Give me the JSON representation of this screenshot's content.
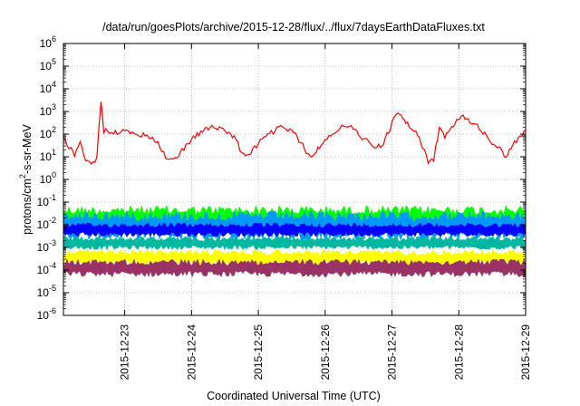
{
  "chart_data": {
    "type": "line",
    "title": "/data/run/goesPlots/archive/2015-12-28/flux/../flux/7daysEarthDataFluxes.txt",
    "xlabel": "Coordinated Universal Time (UTC)",
    "ylabel_parts": {
      "base": "protons/cm",
      "sup": "2",
      "rest": "-s-sr-MeV"
    },
    "yscale": "log",
    "ylim_exp": [
      -6,
      6
    ],
    "ytick_base": "10",
    "ytick_exponents": [
      "-6",
      "-5",
      "-4",
      "-3",
      "-2",
      "-1",
      "0",
      "1",
      "2",
      "3",
      "4",
      "5",
      "6"
    ],
    "xlim_days": [
      "2015-12-22T02:00",
      "2015-12-29T00:00"
    ],
    "xtick_labels": [
      "2015-12-23",
      "2015-12-24",
      "2015-12-25",
      "2015-12-26",
      "2015-12-27",
      "2015-12-28",
      "2015-12-29"
    ],
    "grid": true,
    "series": [
      {
        "color": "#ff0000",
        "style": "line",
        "points": [
          [
            "2015-12-22T02:00",
            60
          ],
          [
            "2015-12-22T04:00",
            30
          ],
          [
            "2015-12-22T06:00",
            12
          ],
          [
            "2015-12-22T08:00",
            40
          ],
          [
            "2015-12-22T10:00",
            8
          ],
          [
            "2015-12-22T12:00",
            4
          ],
          [
            "2015-12-22T14:00",
            10
          ],
          [
            "2015-12-22T15:30",
            3000
          ],
          [
            "2015-12-22T16:30",
            150
          ],
          [
            "2015-12-22T20:00",
            120
          ],
          [
            "2015-12-23T00:00",
            130
          ],
          [
            "2015-12-23T04:00",
            90
          ],
          [
            "2015-12-23T08:00",
            100
          ],
          [
            "2015-12-23T12:00",
            40
          ],
          [
            "2015-12-23T14:00",
            15
          ],
          [
            "2015-12-23T16:00",
            6
          ],
          [
            "2015-12-23T20:00",
            15
          ],
          [
            "2015-12-24T00:00",
            60
          ],
          [
            "2015-12-24T04:00",
            150
          ],
          [
            "2015-12-24T08:00",
            200
          ],
          [
            "2015-12-24T12:00",
            150
          ],
          [
            "2015-12-24T16:00",
            60
          ],
          [
            "2015-12-24T18:00",
            15
          ],
          [
            "2015-12-24T20:00",
            10
          ],
          [
            "2015-12-25T00:00",
            40
          ],
          [
            "2015-12-25T04:00",
            100
          ],
          [
            "2015-12-25T08:00",
            200
          ],
          [
            "2015-12-25T12:00",
            150
          ],
          [
            "2015-12-25T16:00",
            30
          ],
          [
            "2015-12-25T19:00",
            8
          ],
          [
            "2015-12-25T22:00",
            30
          ],
          [
            "2015-12-26T02:00",
            100
          ],
          [
            "2015-12-26T06:00",
            220
          ],
          [
            "2015-12-26T10:00",
            180
          ],
          [
            "2015-12-26T14:00",
            60
          ],
          [
            "2015-12-26T18:00",
            25
          ],
          [
            "2015-12-26T21:00",
            40
          ],
          [
            "2015-12-27T00:00",
            300
          ],
          [
            "2015-12-27T02:00",
            900
          ],
          [
            "2015-12-27T05:00",
            350
          ],
          [
            "2015-12-27T08:00",
            150
          ],
          [
            "2015-12-27T11:00",
            30
          ],
          [
            "2015-12-27T13:00",
            6
          ],
          [
            "2015-12-27T15:00",
            8
          ],
          [
            "2015-12-27T17:00",
            200
          ],
          [
            "2015-12-27T19:00",
            80
          ],
          [
            "2015-12-27T22:00",
            200
          ],
          [
            "2015-12-28T01:00",
            800
          ],
          [
            "2015-12-28T04:00",
            400
          ],
          [
            "2015-12-28T08:00",
            150
          ],
          [
            "2015-12-28T12:00",
            40
          ],
          [
            "2015-12-28T15:00",
            20
          ],
          [
            "2015-12-28T17:00",
            10
          ],
          [
            "2015-12-28T20:00",
            40
          ],
          [
            "2015-12-29T00:00",
            150
          ]
        ]
      },
      {
        "color": "#00ff00",
        "style": "band",
        "low": 0.004,
        "high": 0.07
      },
      {
        "color": "#0099ff",
        "style": "band",
        "low": 0.002,
        "high": 0.04
      },
      {
        "color": "#0000ff",
        "style": "band",
        "low": 0.003,
        "high": 0.012
      },
      {
        "color": "#00b8a0",
        "style": "band",
        "low": 0.0008,
        "high": 0.003
      },
      {
        "color": "#ffff00",
        "style": "band",
        "low": 0.00015,
        "high": 0.0008
      },
      {
        "color": "#993366",
        "style": "band",
        "low": 5e-05,
        "high": 0.0003
      }
    ]
  }
}
